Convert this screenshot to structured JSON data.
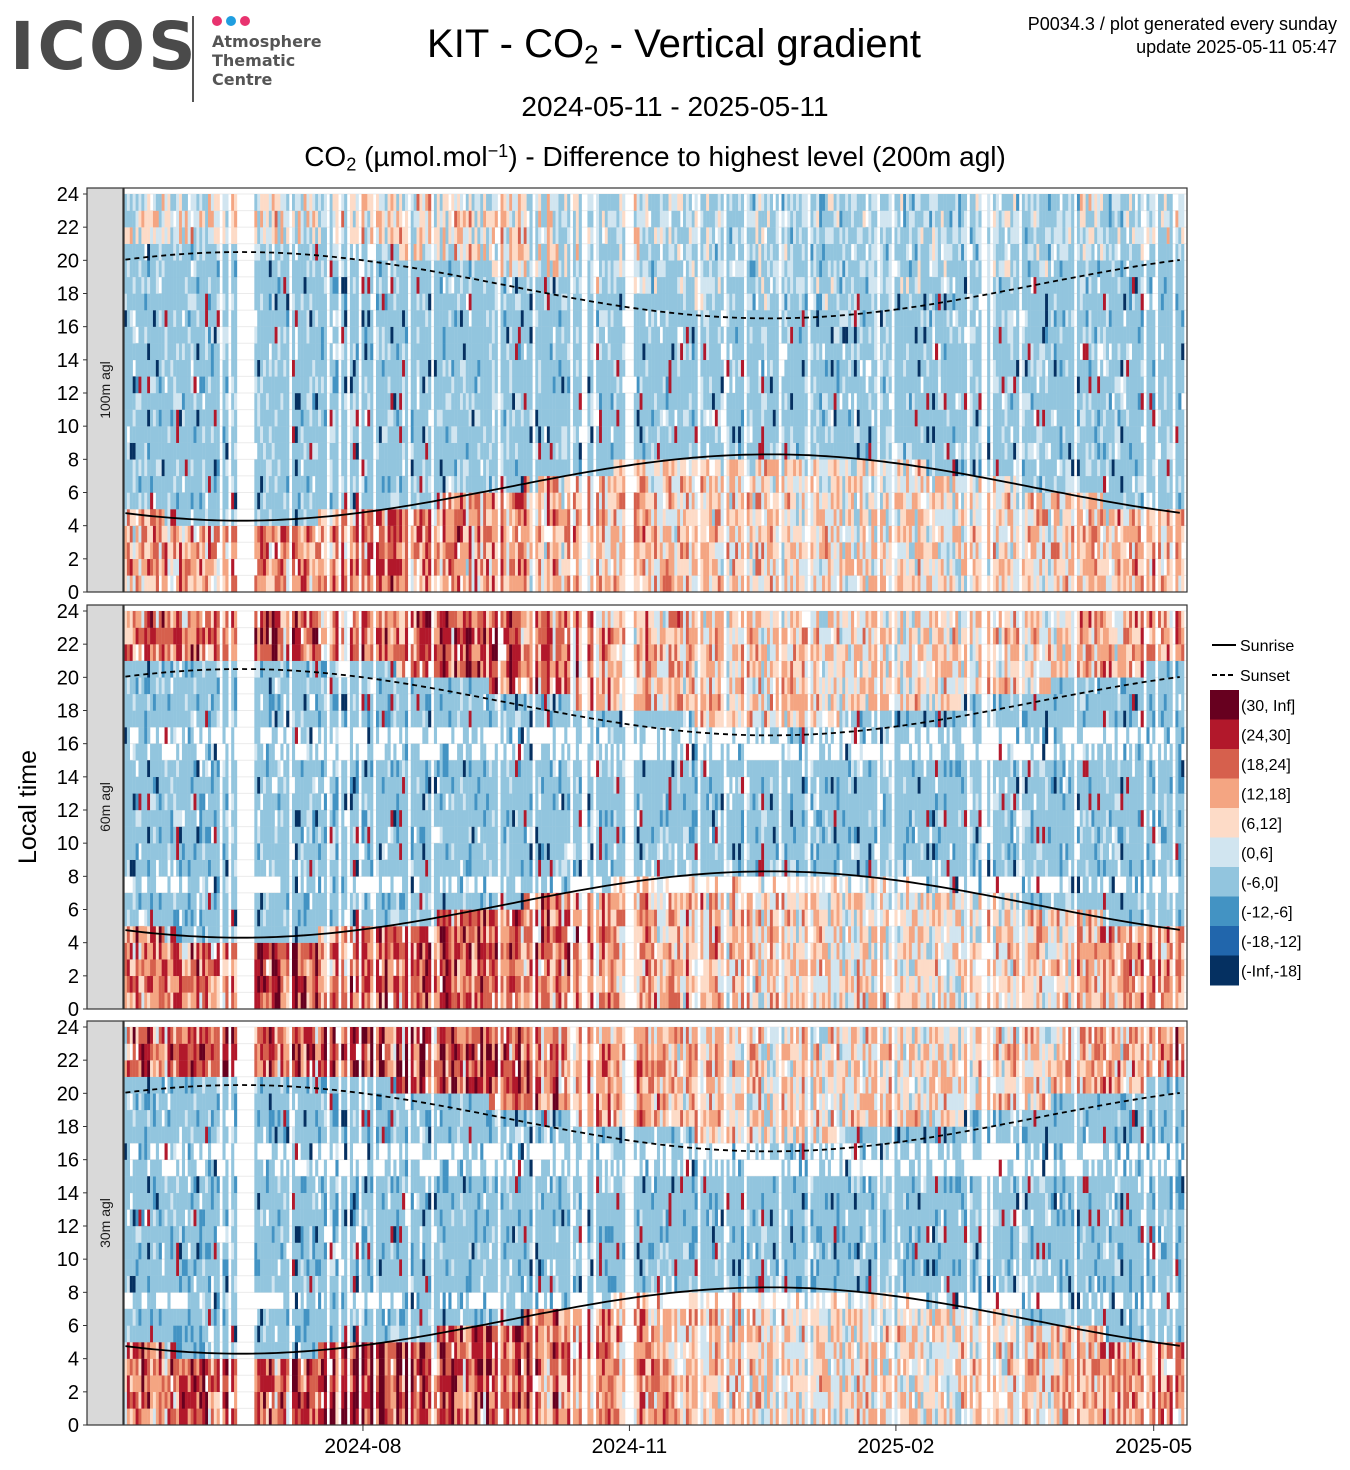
{
  "header": {
    "logo_text": "ICOS",
    "logo_lines": [
      "Atmosphere",
      "Thematic",
      "Centre"
    ],
    "title_prefix": "KIT - CO",
    "title_sub": "2",
    "title_suffix": " - Vertical gradient",
    "date_range": "2024-05-11 - 2025-05-11",
    "subtitle_prefix": "CO",
    "subtitle_sub": "2",
    "subtitle_unit_open": " (µmol.mol",
    "subtitle_unit_sup": "−1",
    "subtitle_suffix": ") - Difference to highest level (200m agl)",
    "meta_line1": "P0034.3 / plot generated every sunday",
    "meta_line2": "update  2025-05-11 05:47",
    "dot_colors": [
      "#e8336f",
      "#1f9ee0",
      "#e8336f"
    ]
  },
  "chart_data": {
    "type": "heatmap",
    "x_axis": {
      "start": "2024-05-11",
      "end": "2025-05-11",
      "tick_labels": [
        "2024-08",
        "2024-11",
        "2025-02",
        "2025-05"
      ]
    },
    "y_axis": {
      "label": "Local time",
      "range": [
        0,
        24
      ],
      "tick_labels": [
        "0",
        "2",
        "4",
        "6",
        "8",
        "10",
        "12",
        "14",
        "16",
        "18",
        "20",
        "22",
        "24"
      ]
    },
    "panels": [
      {
        "label": "100m agl",
        "intensity": 0.55
      },
      {
        "label": "60m agl",
        "intensity": 0.85
      },
      {
        "label": "30m agl",
        "intensity": 1.0
      }
    ],
    "legend": {
      "placement": "right",
      "lines": [
        {
          "label": "Sunrise",
          "style": "solid"
        },
        {
          "label": "Sunset",
          "style": "dashed"
        }
      ],
      "bins": [
        {
          "label": "(30, Inf]",
          "color": "#67001f"
        },
        {
          "label": "(24,30]",
          "color": "#b2182b"
        },
        {
          "label": "(18,24]",
          "color": "#d6604d"
        },
        {
          "label": "(12,18]",
          "color": "#f4a582"
        },
        {
          "label": "(6,12]",
          "color": "#fddbc7"
        },
        {
          "label": "(0,6]",
          "color": "#d1e5f0"
        },
        {
          "label": "(-6,0]",
          "color": "#92c5de"
        },
        {
          "label": "(-12,-6]",
          "color": "#4393c3"
        },
        {
          "label": "(-18,-12]",
          "color": "#2166ac"
        },
        {
          "label": "(-Inf,-18]",
          "color": "#053061"
        }
      ]
    },
    "sunrise_hours": {
      "min": 4.3,
      "max": 8.3
    },
    "sunset_hours": {
      "min": 16.5,
      "max": 20.5
    }
  }
}
